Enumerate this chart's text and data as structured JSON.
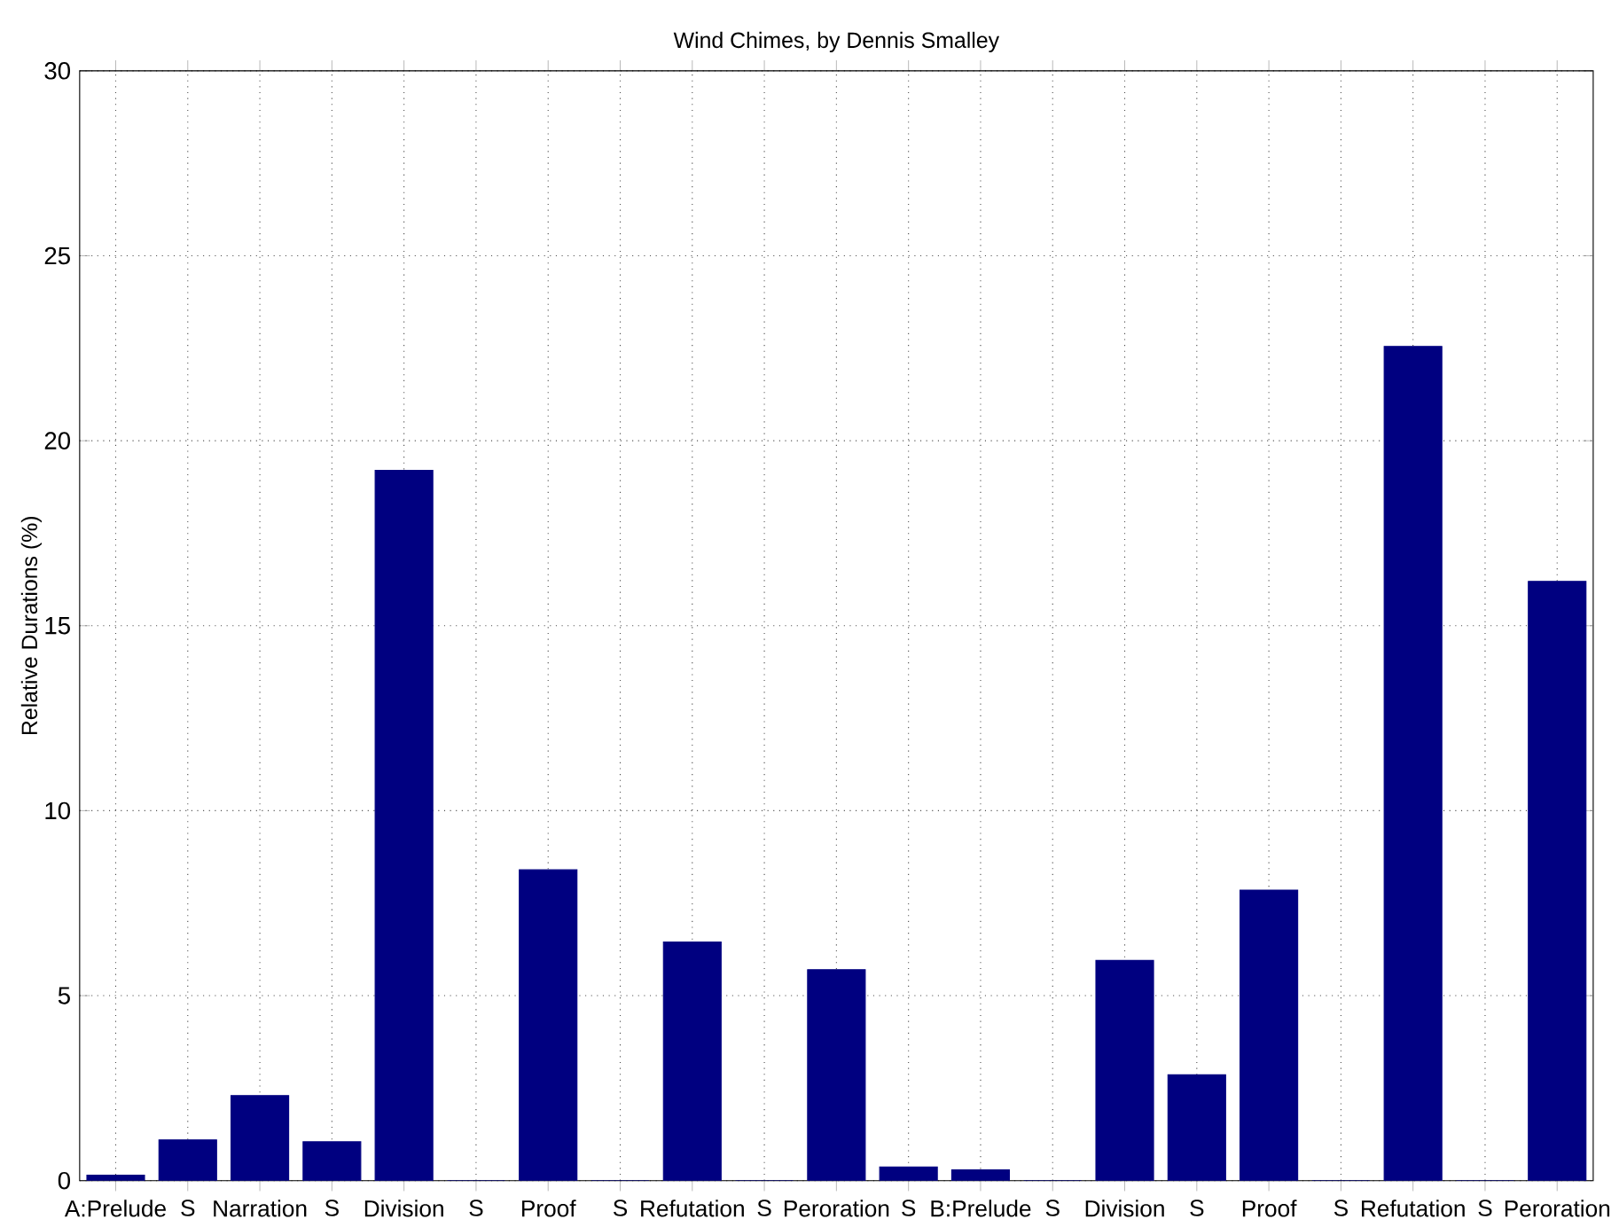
{
  "chart_data": {
    "type": "bar",
    "title": "Wind Chimes, by Dennis Smalley",
    "ylabel": "Relative Durations (%)",
    "categories": [
      "A:Prelude",
      "S",
      "Narration",
      "S",
      "Division",
      "S",
      "Proof",
      "S",
      "Refutation",
      "S",
      "Peroration",
      "S",
      "B:Prelude",
      "S",
      "Division",
      "S",
      "Proof",
      "S",
      "Refutation",
      "S",
      "Peroration"
    ],
    "values": [
      0.15,
      1.1,
      2.3,
      1.05,
      19.2,
      0,
      8.4,
      0,
      6.45,
      0,
      5.7,
      0.37,
      0.29,
      0,
      5.95,
      2.86,
      7.85,
      0,
      22.55,
      0,
      16.2
    ],
    "color": "#000080",
    "ylim": [
      0,
      30
    ],
    "yticks": [
      0,
      5,
      10,
      15,
      20,
      25,
      30
    ],
    "grid": true
  }
}
